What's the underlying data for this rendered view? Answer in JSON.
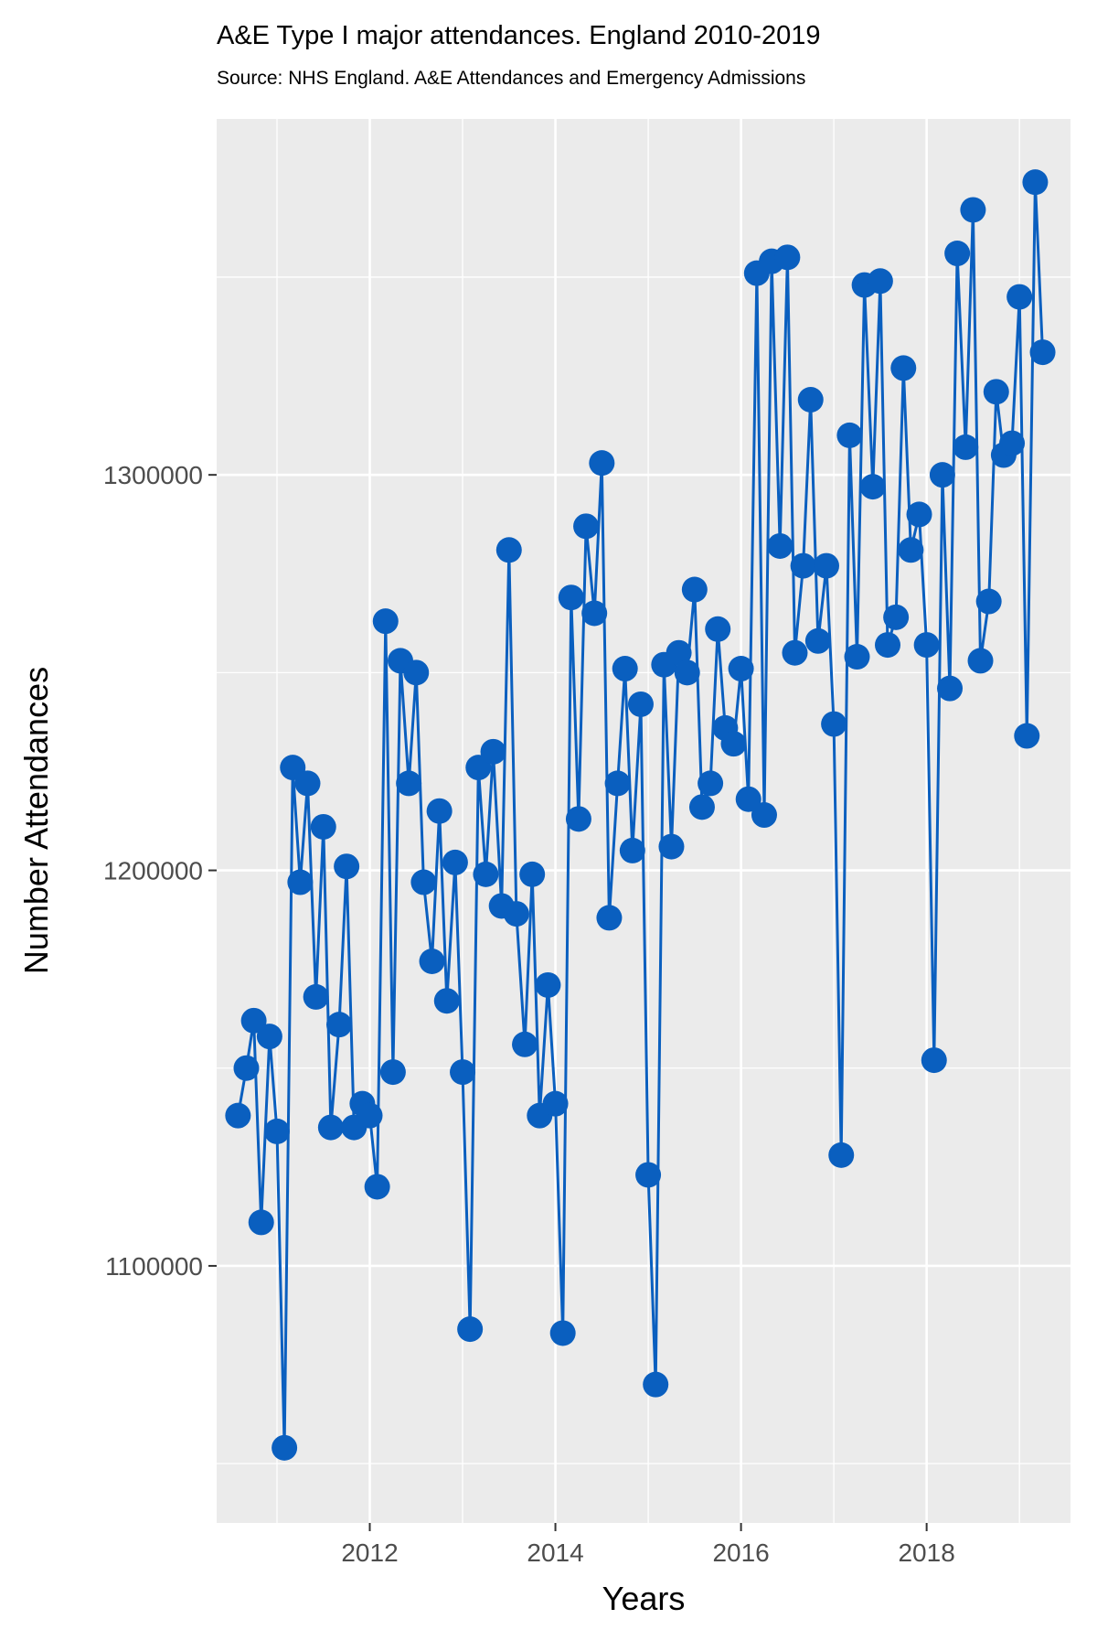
{
  "chart_data": {
    "type": "line",
    "title": "A&E Type I major attendances. England 2010-2019",
    "subtitle": "Source: NHS England. A&E Attendances and Emergency Admissions",
    "xlabel": "Years",
    "ylabel": "Number Attendances",
    "xlim": [
      2010.35,
      2019.55
    ],
    "ylim": [
      1035000,
      1390000
    ],
    "x_ticks": [
      2012,
      2014,
      2016,
      2018
    ],
    "x_tick_labels": [
      "2012",
      "2014",
      "2016",
      "2018"
    ],
    "y_ticks": [
      1100000,
      1200000,
      1300000
    ],
    "y_tick_labels": [
      "1100000",
      "1200000",
      "1300000"
    ],
    "grid": true,
    "colors": {
      "series": "#0a5fbf",
      "panel": "#ebebeb",
      "grid": "#ffffff",
      "axis_text": "#4d4d4d"
    },
    "series": [
      {
        "x": [
          2010.58,
          2010.67,
          2010.75,
          2010.83,
          2010.92,
          2011.0,
          2011.08,
          2011.17,
          2011.25,
          2011.33,
          2011.42,
          2011.5,
          2011.58,
          2011.67,
          2011.75,
          2011.83,
          2011.92,
          2012.0,
          2012.08,
          2012.17,
          2012.25,
          2012.33,
          2012.42,
          2012.5,
          2012.58,
          2012.67,
          2012.75,
          2012.83,
          2012.92,
          2013.0,
          2013.08,
          2013.17,
          2013.25,
          2013.33,
          2013.42,
          2013.5,
          2013.58,
          2013.67,
          2013.75,
          2013.83,
          2013.92,
          2014.0,
          2014.08,
          2014.17,
          2014.25,
          2014.33,
          2014.42,
          2014.5,
          2014.58,
          2014.67,
          2014.75,
          2014.83,
          2014.92,
          2015.0,
          2015.08,
          2015.17,
          2015.25,
          2015.33,
          2015.42,
          2015.5,
          2015.58,
          2015.67,
          2015.75,
          2015.83,
          2015.92,
          2016.0,
          2016.08,
          2016.17,
          2016.25,
          2016.33,
          2016.42,
          2016.5,
          2016.58,
          2016.67,
          2016.75,
          2016.83,
          2016.92,
          2017.0,
          2017.08,
          2017.17,
          2017.25,
          2017.33,
          2017.42,
          2017.5,
          2017.58,
          2017.67,
          2017.75,
          2017.83,
          2017.92,
          2018.0,
          2018.08,
          2018.17,
          2018.25,
          2018.33,
          2018.42,
          2018.5,
          2018.58,
          2018.67,
          2018.75,
          2018.83,
          2018.92,
          2019.0,
          2019.08,
          2019.17,
          2019.25
        ],
        "values": [
          1138000,
          1150000,
          1162000,
          1111000,
          1158000,
          1134000,
          1054000,
          1226000,
          1197000,
          1222000,
          1168000,
          1211000,
          1135000,
          1161000,
          1201000,
          1135000,
          1141000,
          1138000,
          1120000,
          1263000,
          1149000,
          1253000,
          1222000,
          1250000,
          1197000,
          1177000,
          1215000,
          1167000,
          1202000,
          1149000,
          1084000,
          1226000,
          1199000,
          1230000,
          1191000,
          1281000,
          1189000,
          1156000,
          1199000,
          1138000,
          1171000,
          1141000,
          1083000,
          1269000,
          1213000,
          1287000,
          1265000,
          1303000,
          1188000,
          1222000,
          1251000,
          1205000,
          1242000,
          1123000,
          1070000,
          1252000,
          1206000,
          1255000,
          1250000,
          1271000,
          1216000,
          1222000,
          1261000,
          1236000,
          1232000,
          1251000,
          1218000,
          1351000,
          1214000,
          1354000,
          1282000,
          1355000,
          1255000,
          1277000,
          1319000,
          1258000,
          1277000,
          1237000,
          1128000,
          1310000,
          1254000,
          1348000,
          1297000,
          1349000,
          1257000,
          1264000,
          1327000,
          1281000,
          1290000,
          1257000,
          1152000,
          1300000,
          1246000,
          1356000,
          1307000,
          1367000,
          1253000,
          1268000,
          1321000,
          1305000,
          1308000,
          1345000,
          1234000,
          1374000,
          1331000
        ]
      }
    ]
  }
}
